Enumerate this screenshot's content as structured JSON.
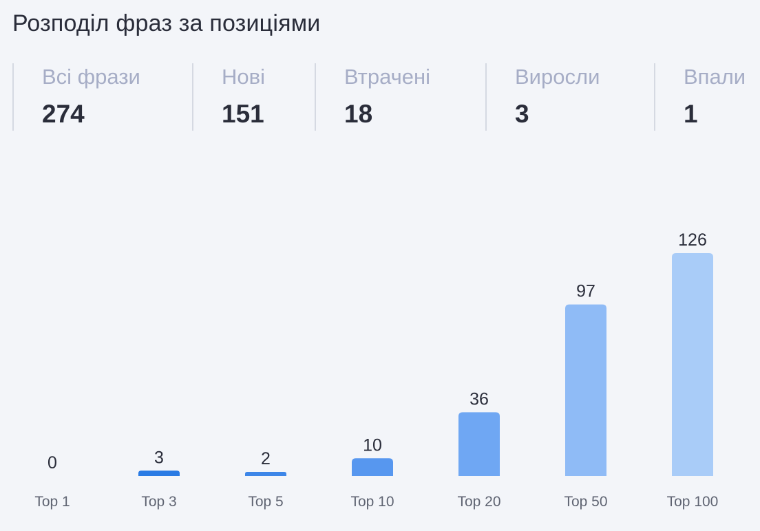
{
  "title": "Розподіл фраз за позиціями",
  "stats": [
    {
      "label": "Всі фрази",
      "value": "274"
    },
    {
      "label": "Нові",
      "value": "151"
    },
    {
      "label": "Втрачені",
      "value": "18"
    },
    {
      "label": "Виросли",
      "value": "3"
    },
    {
      "label": "Впали",
      "value": "1"
    }
  ],
  "colors": {
    "title": "#2a2d3a",
    "stat_label": "#a6adc6",
    "divider": "#d5d9e2",
    "background": "#f3f5f9"
  },
  "chart_data": {
    "type": "bar",
    "categories": [
      "Top 1",
      "Top 3",
      "Top 5",
      "Top 10",
      "Top 20",
      "Top 50",
      "Top 100"
    ],
    "values": [
      0,
      3,
      2,
      10,
      36,
      97,
      126
    ],
    "value_labels": [
      "0",
      "3",
      "2",
      "10",
      "36",
      "97",
      "126"
    ],
    "bar_colors": [
      "#1a73e8",
      "#2a7be4",
      "#3d86e8",
      "#5797ef",
      "#6fa7f3",
      "#8fbbf6",
      "#a9ccf8"
    ],
    "ylim": [
      0,
      126
    ],
    "grid": false,
    "legend": "none"
  }
}
